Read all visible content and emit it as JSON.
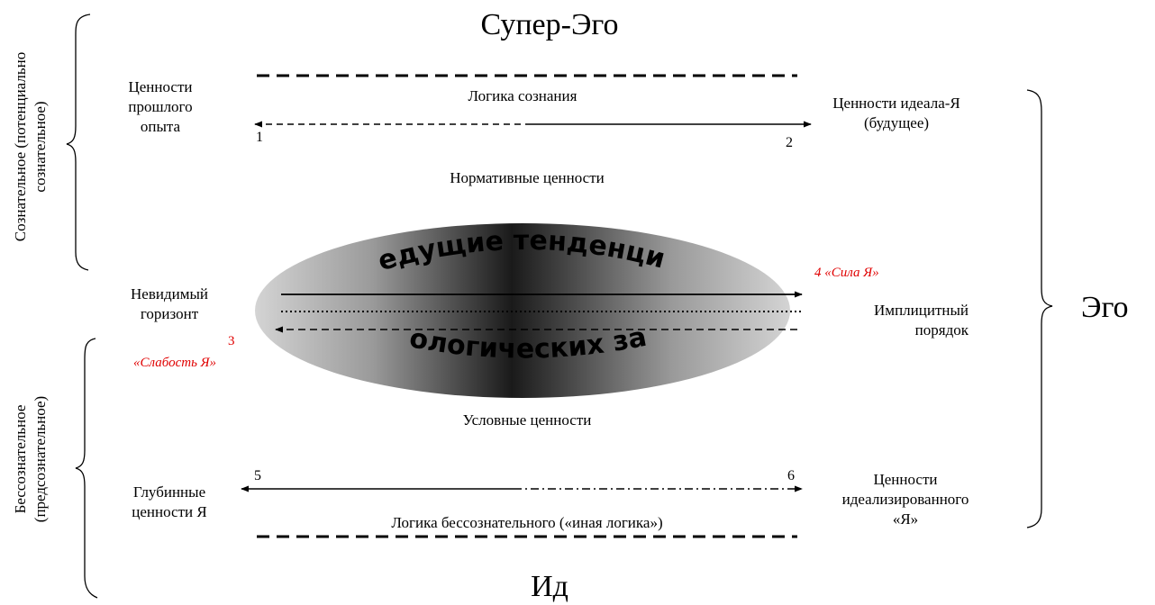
{
  "title_top": "Супер-Эго",
  "title_bottom": "Ид",
  "right_brace_label": "Эго",
  "left_top_label": [
    "Сознательное (потенциально",
    "сознательное)"
  ],
  "left_bottom_label": [
    "Бессознательное",
    "(предсознательное)"
  ],
  "top_zone": {
    "logic": "Логика сознания",
    "left_values": [
      "Ценности",
      "прошлого",
      "опыта"
    ],
    "right_values": [
      "Ценности идеала-Я",
      "(будущее)"
    ],
    "marker_left": "1",
    "marker_right": "2",
    "normative": "Нормативные ценности"
  },
  "middle_zone": {
    "arc_top": "ведущие тенденции",
    "arc_bottom": "психологических защит",
    "left_label": [
      "Невидимый",
      "горизонт"
    ],
    "right_label": [
      "Имплицитный",
      "порядок"
    ],
    "strength": "4 «Сила Я»",
    "weakness_num": "3",
    "weakness": "«Слабость Я»"
  },
  "bottom_zone": {
    "conditional": "Условные ценности",
    "left_values": [
      "Глубинные",
      "ценности Я"
    ],
    "right_values": [
      "Ценности",
      "идеализированного",
      "«Я»"
    ],
    "logic": "Логика бессознательного («иная логика»)",
    "marker_left": "5",
    "marker_right": "6"
  },
  "colors": {
    "ink": "#000000",
    "accent": "#e00000",
    "ellipse_dark": "#1a1a1a",
    "ellipse_light": "#d0d0d0"
  }
}
